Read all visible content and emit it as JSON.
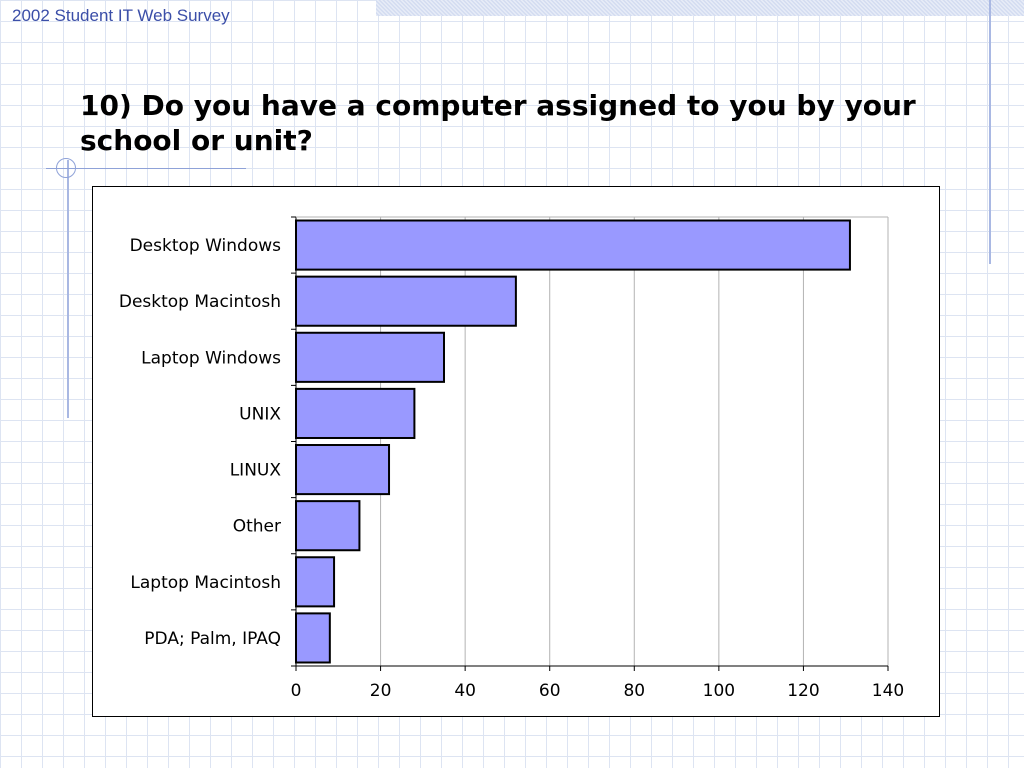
{
  "header": {
    "survey_title": "2002 Student IT Web Survey"
  },
  "slide": {
    "title": "10) Do you have a computer assigned to you by your school or unit?"
  },
  "colors": {
    "bar_fill": "#9999ff",
    "bar_stroke": "#000000",
    "gridline": "#b3b3b3",
    "header_text": "#3b4ea8"
  },
  "chart_data": {
    "type": "bar",
    "orientation": "horizontal",
    "categories": [
      "Desktop Windows",
      "Desktop Macintosh",
      "Laptop Windows",
      "UNIX",
      "LINUX",
      "Other",
      "Laptop Macintosh",
      "PDA; Palm, IPAQ"
    ],
    "values": [
      131,
      52,
      35,
      28,
      22,
      15,
      9,
      8
    ],
    "xlim": [
      0,
      140
    ],
    "x_ticks": [
      "0",
      "20",
      "40",
      "60",
      "80",
      "100",
      "120",
      "140"
    ],
    "title": "",
    "xlabel": "",
    "ylabel": "",
    "grid": "vertical",
    "legend": "none"
  }
}
